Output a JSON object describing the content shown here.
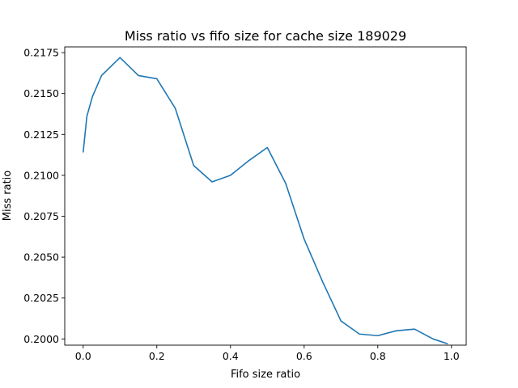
{
  "chart_data": {
    "type": "line",
    "title": "Miss ratio vs fifo size for cache size 189029",
    "xlabel": "Fifo size ratio",
    "ylabel": "Miss ratio",
    "xlim": [
      -0.05,
      1.04
    ],
    "ylim": [
      0.19962,
      0.21785
    ],
    "xticks": [
      0.0,
      0.2,
      0.4,
      0.6,
      0.8,
      1.0
    ],
    "xtick_labels": [
      "0.0",
      "0.2",
      "0.4",
      "0.6",
      "0.8",
      "1.0"
    ],
    "yticks": [
      0.2,
      0.2025,
      0.205,
      0.2075,
      0.21,
      0.2125,
      0.215,
      0.2175
    ],
    "ytick_labels": [
      "0.2000",
      "0.2025",
      "0.2050",
      "0.2075",
      "0.2100",
      "0.2125",
      "0.2150",
      "0.2175"
    ],
    "grid": false,
    "legend": null,
    "color": "#1f77b4",
    "series": [
      {
        "x": [
          0.0,
          0.01,
          0.025,
          0.05,
          0.1,
          0.15,
          0.2,
          0.25,
          0.3,
          0.35,
          0.4,
          0.45,
          0.5,
          0.55,
          0.6,
          0.65,
          0.7,
          0.75,
          0.8,
          0.85,
          0.9,
          0.95,
          0.99
        ],
        "y": [
          0.2114,
          0.2136,
          0.2148,
          0.2161,
          0.2172,
          0.2161,
          0.2159,
          0.2141,
          0.2106,
          0.2096,
          0.21,
          0.2109,
          0.2117,
          0.2095,
          0.2061,
          0.2035,
          0.2011,
          0.2003,
          0.2002,
          0.2005,
          0.2006,
          0.2,
          0.1997
        ]
      }
    ]
  }
}
